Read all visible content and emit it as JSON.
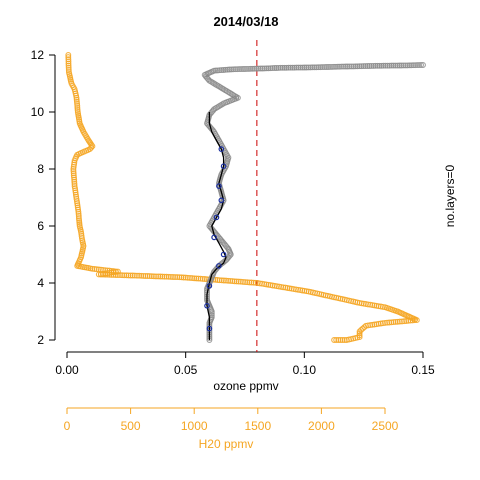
{
  "chart_data": {
    "type": "scatter",
    "title": "2014/03/18",
    "xlabel": "ozone ppmv",
    "ylabel": "",
    "right_label": "no.layers=0",
    "x_ticks": [
      0.0,
      0.05,
      0.1,
      0.15
    ],
    "x_tick_labels": [
      "0.00",
      "0.05",
      "0.10",
      "0.15"
    ],
    "xlim": [
      0.0,
      0.15
    ],
    "y_ticks": [
      2,
      4,
      6,
      8,
      10,
      12
    ],
    "y_tick_labels": [
      "2",
      "4",
      "6",
      "8",
      "10",
      "12"
    ],
    "ylim": [
      2,
      12
    ],
    "reference_line_x": 0.08,
    "h2o_axis": {
      "label": "H20 ppmv",
      "ticks": [
        0,
        500,
        1000,
        1500,
        2000,
        2500
      ],
      "tick_labels": [
        "0",
        "500",
        "1000",
        "1500",
        "2000",
        "2500"
      ],
      "range": [
        0,
        2500
      ]
    },
    "series": [
      {
        "kind": "h2o",
        "color": "#f5a623",
        "points": [
          [
            10,
            12.0
          ],
          [
            12,
            11.7
          ],
          [
            15,
            11.4
          ],
          [
            25,
            11.2
          ],
          [
            35,
            11.0
          ],
          [
            60,
            10.8
          ],
          [
            75,
            10.5
          ],
          [
            85,
            10.0
          ],
          [
            100,
            9.6
          ],
          [
            130,
            9.3
          ],
          [
            170,
            9.0
          ],
          [
            200,
            8.8
          ],
          [
            180,
            8.7
          ],
          [
            80,
            8.5
          ],
          [
            60,
            8.3
          ],
          [
            50,
            8.0
          ],
          [
            55,
            7.7
          ],
          [
            60,
            7.4
          ],
          [
            70,
            7.1
          ],
          [
            80,
            6.8
          ],
          [
            90,
            6.5
          ],
          [
            95,
            6.2
          ],
          [
            100,
            6.0
          ],
          [
            110,
            5.8
          ],
          [
            120,
            5.5
          ],
          [
            130,
            5.3
          ],
          [
            120,
            5.1
          ],
          [
            110,
            4.9
          ],
          [
            90,
            4.7
          ],
          [
            80,
            4.6
          ],
          [
            200,
            4.5
          ],
          [
            300,
            4.45
          ],
          [
            400,
            4.4
          ],
          [
            250,
            4.3
          ],
          [
            600,
            4.25
          ],
          [
            900,
            4.2
          ],
          [
            1200,
            4.1
          ],
          [
            1500,
            4.0
          ],
          [
            1700,
            3.85
          ],
          [
            1900,
            3.7
          ],
          [
            2100,
            3.5
          ],
          [
            2300,
            3.3
          ],
          [
            2500,
            3.15
          ],
          [
            2600,
            3.0
          ],
          [
            2650,
            2.9
          ],
          [
            2700,
            2.8
          ],
          [
            2750,
            2.7
          ],
          [
            2500,
            2.6
          ],
          [
            2350,
            2.5
          ],
          [
            2300,
            2.3
          ],
          [
            2300,
            2.1
          ],
          [
            2200,
            2.0
          ],
          [
            2100,
            2.0
          ]
        ]
      },
      {
        "kind": "ozone-raw",
        "color": "#888888",
        "points": [
          [
            0.15,
            11.65
          ],
          [
            0.14,
            11.63
          ],
          [
            0.13,
            11.62
          ],
          [
            0.12,
            11.6
          ],
          [
            0.11,
            11.58
          ],
          [
            0.1,
            11.56
          ],
          [
            0.09,
            11.55
          ],
          [
            0.08,
            11.52
          ],
          [
            0.07,
            11.5
          ],
          [
            0.062,
            11.45
          ],
          [
            0.058,
            11.3
          ],
          [
            0.06,
            11.1
          ],
          [
            0.064,
            10.9
          ],
          [
            0.068,
            10.7
          ],
          [
            0.072,
            10.5
          ],
          [
            0.066,
            10.3
          ],
          [
            0.062,
            10.1
          ],
          [
            0.06,
            9.9
          ],
          [
            0.059,
            9.6
          ],
          [
            0.062,
            9.3
          ],
          [
            0.064,
            9.0
          ],
          [
            0.066,
            8.7
          ],
          [
            0.068,
            8.4
          ],
          [
            0.067,
            8.1
          ],
          [
            0.065,
            7.8
          ],
          [
            0.064,
            7.5
          ],
          [
            0.065,
            7.2
          ],
          [
            0.066,
            6.9
          ],
          [
            0.064,
            6.6
          ],
          [
            0.062,
            6.3
          ],
          [
            0.06,
            6.0
          ],
          [
            0.062,
            5.8
          ],
          [
            0.064,
            5.6
          ],
          [
            0.066,
            5.4
          ],
          [
            0.068,
            5.2
          ],
          [
            0.069,
            5.0
          ],
          [
            0.067,
            4.8
          ],
          [
            0.064,
            4.6
          ],
          [
            0.062,
            4.4
          ],
          [
            0.061,
            4.2
          ],
          [
            0.06,
            4.0
          ],
          [
            0.059,
            3.8
          ],
          [
            0.059,
            3.6
          ],
          [
            0.059,
            3.4
          ],
          [
            0.06,
            3.2
          ],
          [
            0.061,
            3.0
          ],
          [
            0.061,
            2.8
          ],
          [
            0.06,
            2.6
          ],
          [
            0.06,
            2.4
          ],
          [
            0.06,
            2.2
          ],
          [
            0.06,
            2.0
          ]
        ]
      },
      {
        "kind": "ozone-smoothed",
        "color": "#000000",
        "points": [
          [
            0.06,
            2.0
          ],
          [
            0.06,
            2.4
          ],
          [
            0.06,
            2.8
          ],
          [
            0.059,
            3.2
          ],
          [
            0.059,
            3.6
          ],
          [
            0.06,
            4.0
          ],
          [
            0.061,
            4.3
          ],
          [
            0.063,
            4.5
          ],
          [
            0.066,
            4.7
          ],
          [
            0.067,
            4.9
          ],
          [
            0.066,
            5.1
          ],
          [
            0.064,
            5.4
          ],
          [
            0.062,
            5.7
          ],
          [
            0.061,
            6.0
          ],
          [
            0.063,
            6.3
          ],
          [
            0.065,
            6.6
          ],
          [
            0.066,
            6.9
          ],
          [
            0.065,
            7.2
          ],
          [
            0.064,
            7.5
          ],
          [
            0.065,
            7.8
          ],
          [
            0.066,
            8.1
          ],
          [
            0.066,
            8.4
          ],
          [
            0.065,
            8.7
          ],
          [
            0.063,
            9.0
          ],
          [
            0.061,
            9.3
          ],
          [
            0.06,
            9.6
          ],
          [
            0.06,
            10.0
          ]
        ]
      },
      {
        "kind": "ozone-markers",
        "color": "#1a2fa0",
        "points": [
          [
            0.06,
            2.4
          ],
          [
            0.059,
            3.2
          ],
          [
            0.06,
            3.9
          ],
          [
            0.064,
            4.6
          ],
          [
            0.066,
            5.0
          ],
          [
            0.062,
            5.6
          ],
          [
            0.063,
            6.3
          ],
          [
            0.065,
            6.9
          ],
          [
            0.064,
            7.4
          ],
          [
            0.066,
            8.1
          ],
          [
            0.065,
            8.7
          ]
        ]
      }
    ]
  }
}
